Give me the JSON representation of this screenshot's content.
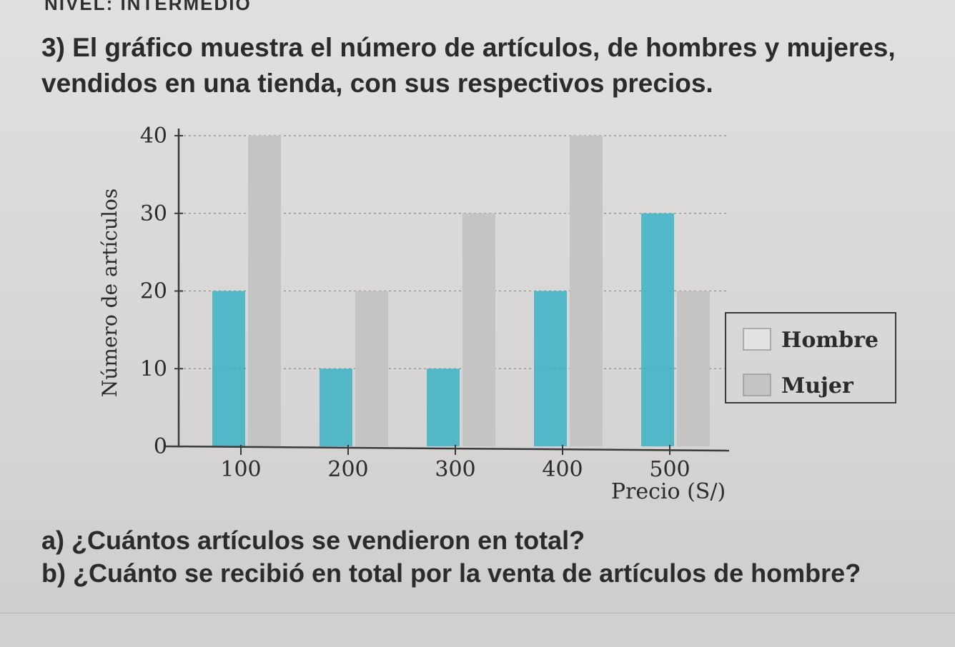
{
  "header": {
    "level": "NIVEL: INTERMEDIO"
  },
  "problem": {
    "statement_line1": "3) El gráfico muestra el número de artículos, de hombres y mujeres,",
    "statement_line2": "vendidos en una tienda, con sus respectivos precios."
  },
  "questions": {
    "a": "a) ¿Cuántos artículos se vendieron en total?",
    "b": "b) ¿Cuánto se recibió en total por la venta de artículos de hombre?"
  },
  "colors": {
    "hombre": "#3bb3c6",
    "mujer": "#c4c4c4",
    "axis": "#3a3a3a"
  },
  "chart_data": {
    "type": "bar",
    "xlabel": "Precio (S/)",
    "ylabel": "Número de artículos",
    "categories": [
      "100",
      "200",
      "300",
      "400",
      "500"
    ],
    "ylim": [
      0,
      40
    ],
    "yticks": [
      "0",
      "10",
      "20",
      "30",
      "40"
    ],
    "grid": true,
    "legend_position": "right",
    "series": [
      {
        "name": "Hombre",
        "values": [
          20,
          10,
          10,
          20,
          30
        ]
      },
      {
        "name": "Mujer",
        "values": [
          40,
          20,
          30,
          40,
          20
        ]
      }
    ]
  }
}
